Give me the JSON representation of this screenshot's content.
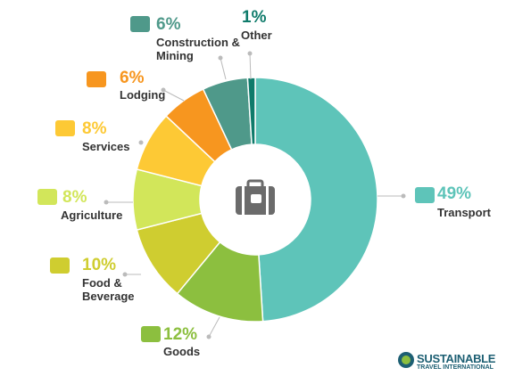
{
  "chart_data": {
    "type": "donut",
    "categories": [
      "Transport",
      "Goods",
      "Food & Beverage",
      "Agriculture",
      "Services",
      "Lodging",
      "Construction & Mining",
      "Other"
    ],
    "values": [
      49,
      12,
      10,
      8,
      8,
      6,
      6,
      1
    ],
    "value_labels": [
      "49%",
      "12%",
      "10%",
      "8%",
      "8%",
      "6%",
      "6%",
      "1%"
    ],
    "colors": [
      "#5ec4b9",
      "#8cbf3f",
      "#cfcd30",
      "#d2e65a",
      "#fdc935",
      "#f7961f",
      "#4f998a",
      "#0f7b6b"
    ]
  },
  "logo": {
    "line1": "SUSTAINABLE",
    "line2": "TRAVEL INTERNATIONAL"
  }
}
